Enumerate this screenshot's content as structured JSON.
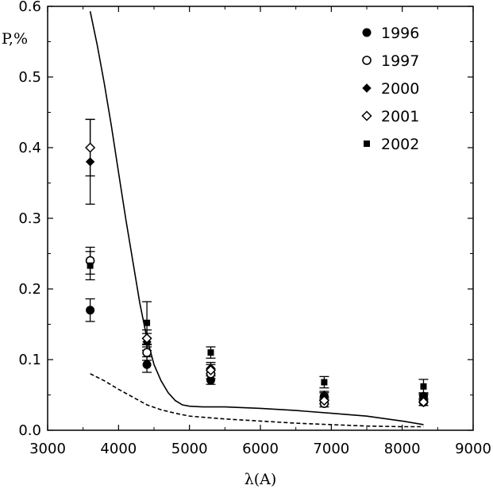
{
  "chart_data": {
    "type": "scatter",
    "xlabel": "λ(A)",
    "ylabel": "P,%",
    "xlim": [
      3000,
      9000
    ],
    "ylim": [
      0,
      0.6
    ],
    "xticks": [
      3000,
      4000,
      5000,
      6000,
      7000,
      8000,
      9000
    ],
    "yticks": [
      0.0,
      0.1,
      0.2,
      0.3,
      0.4,
      0.5,
      0.6
    ],
    "xtick_labels": [
      "3000",
      "4000",
      "5000",
      "6000",
      "7000",
      "8000",
      "9000"
    ],
    "ytick_labels": [
      "0.0",
      "0.1",
      "0.2",
      "0.3",
      "0.4",
      "0.5",
      "0.6"
    ],
    "grid": false,
    "legend_position": "top-right",
    "series": [
      {
        "name": "1996",
        "marker": "filled-circle",
        "points": [
          {
            "x": 3600,
            "y": 0.17,
            "err": 0.016
          },
          {
            "x": 4400,
            "y": 0.093,
            "err": 0.011
          },
          {
            "x": 5300,
            "y": 0.071,
            "err": 0.006
          },
          {
            "x": 6900,
            "y": 0.048,
            "err": 0.005
          },
          {
            "x": 8300,
            "y": 0.048,
            "err": 0.005
          }
        ]
      },
      {
        "name": "1997",
        "marker": "open-circle",
        "points": [
          {
            "x": 3600,
            "y": 0.24,
            "err": 0.019
          },
          {
            "x": 4400,
            "y": 0.11,
            "err": 0.011
          },
          {
            "x": 5300,
            "y": 0.08,
            "err": 0.007
          },
          {
            "x": 6900,
            "y": 0.038,
            "err": 0.005
          },
          {
            "x": 8300,
            "y": 0.04,
            "err": 0.005
          }
        ]
      },
      {
        "name": "2000",
        "marker": "filled-diamond",
        "points": [
          {
            "x": 3600,
            "y": 0.38,
            "err": 0.06
          },
          {
            "x": 4400,
            "y": 0.125,
            "err": 0.012
          },
          {
            "x": 5300,
            "y": 0.088,
            "err": 0.008
          },
          {
            "x": 6900,
            "y": 0.05,
            "err": 0.005
          },
          {
            "x": 8300,
            "y": 0.045,
            "err": 0.005
          }
        ]
      },
      {
        "name": "2001",
        "marker": "open-diamond",
        "points": [
          {
            "x": 3600,
            "y": 0.4,
            "err": 0.04
          },
          {
            "x": 4400,
            "y": 0.13,
            "err": 0.012
          },
          {
            "x": 5300,
            "y": 0.085,
            "err": 0.008
          },
          {
            "x": 6900,
            "y": 0.042,
            "err": 0.005
          },
          {
            "x": 8300,
            "y": 0.04,
            "err": 0.005
          }
        ]
      },
      {
        "name": "2002",
        "marker": "filled-square",
        "points": [
          {
            "x": 3600,
            "y": 0.233,
            "err": 0.02
          },
          {
            "x": 4400,
            "y": 0.152,
            "err": 0.03
          },
          {
            "x": 5300,
            "y": 0.11,
            "err": 0.008
          },
          {
            "x": 6900,
            "y": 0.068,
            "err": 0.008
          },
          {
            "x": 8300,
            "y": 0.062,
            "err": 0.01
          }
        ]
      }
    ],
    "curves": [
      {
        "style": "solid",
        "x": [
          3600,
          3700,
          3800,
          3900,
          4000,
          4100,
          4200,
          4300,
          4400,
          4500,
          4600,
          4700,
          4800,
          4900,
          5000,
          5200,
          5500,
          6000,
          6500,
          7000,
          7500,
          8000,
          8300
        ],
        "y": [
          0.593,
          0.545,
          0.49,
          0.43,
          0.365,
          0.3,
          0.24,
          0.18,
          0.13,
          0.093,
          0.07,
          0.053,
          0.042,
          0.036,
          0.034,
          0.033,
          0.033,
          0.031,
          0.028,
          0.024,
          0.02,
          0.013,
          0.008
        ]
      },
      {
        "style": "dashed",
        "x": [
          3600,
          3800,
          4000,
          4200,
          4400,
          4600,
          4800,
          5000,
          5500,
          6000,
          6500,
          7000,
          7500,
          8000,
          8300
        ],
        "y": [
          0.08,
          0.07,
          0.058,
          0.047,
          0.036,
          0.029,
          0.024,
          0.02,
          0.016,
          0.013,
          0.01,
          0.008,
          0.006,
          0.005,
          0.005
        ]
      }
    ]
  }
}
